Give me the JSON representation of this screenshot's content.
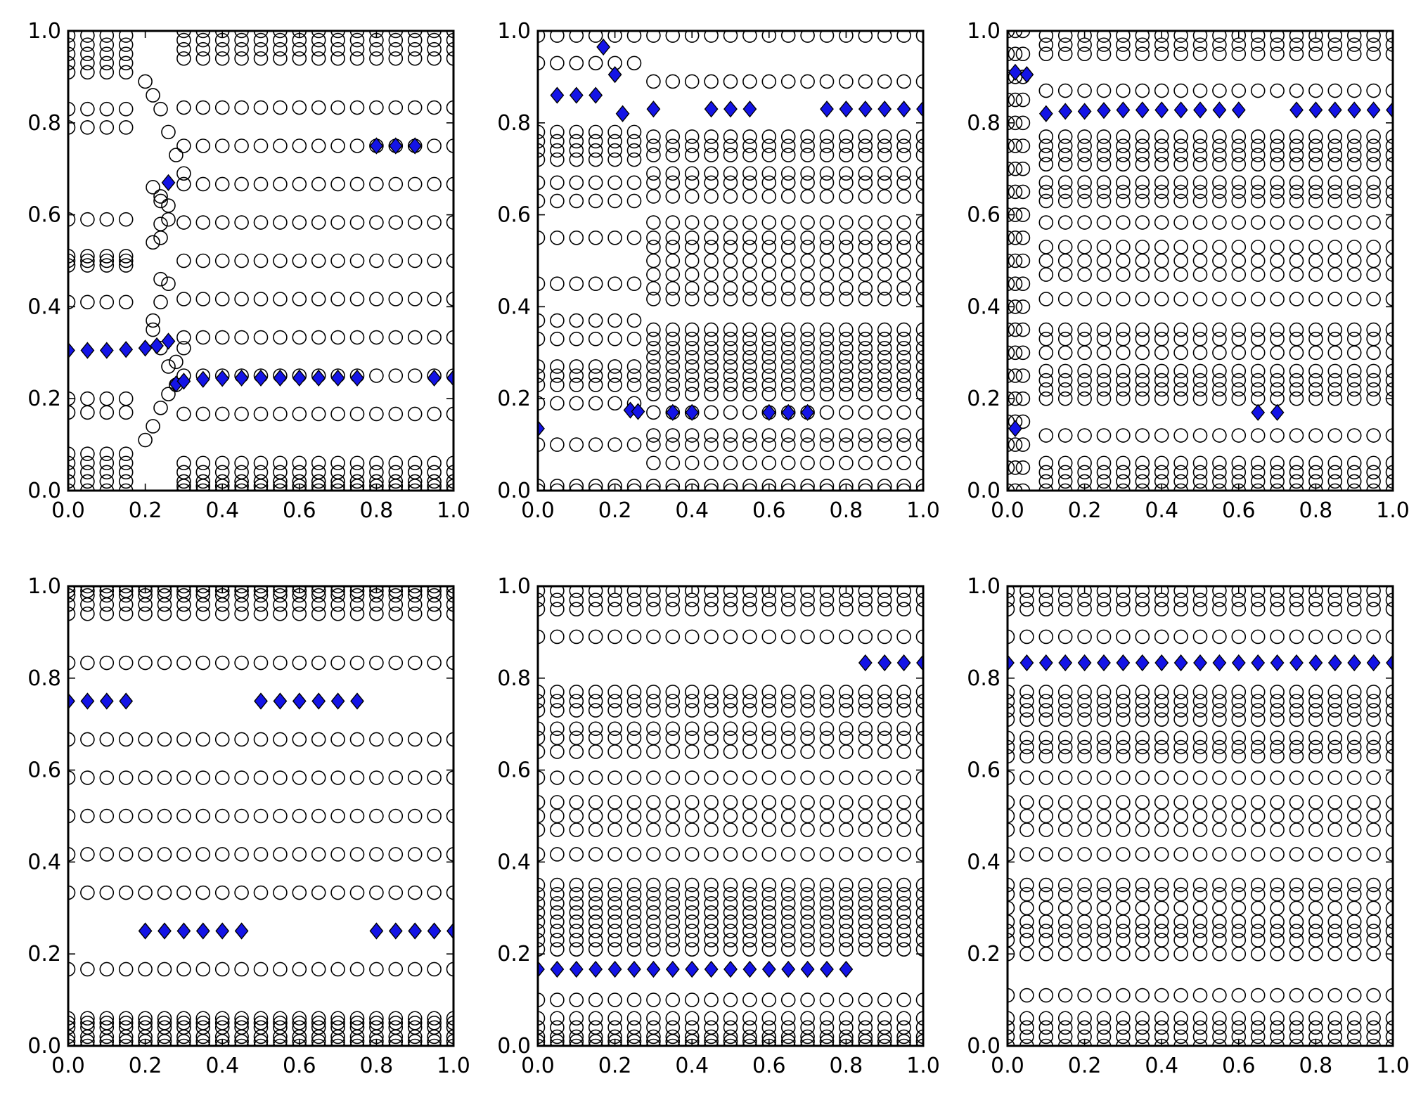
{
  "colors": {
    "background": "#ffffff",
    "open_marker": "#ffffff",
    "open_marker_edge": "#000000",
    "highlight": "#1414e6"
  },
  "chart_data": [
    {
      "type": "scatter",
      "xlim": [
        0,
        1
      ],
      "ylim": [
        0,
        1
      ],
      "xticks": [
        "0.0",
        "0.2",
        "0.4",
        "0.6",
        "0.8",
        "1.0"
      ],
      "yticks": [
        "0.0",
        "0.2",
        "0.4",
        "0.6",
        "0.8",
        "1.0"
      ],
      "grid": false,
      "series": [
        {
          "marker": "open-circle",
          "x_grid": [
            0.0,
            0.05,
            0.1,
            0.15,
            0.2,
            0.25,
            0.3,
            0.35,
            0.4,
            0.45,
            0.5,
            0.55,
            0.6,
            0.65,
            0.7,
            0.75,
            0.8,
            0.85,
            0.9,
            0.95,
            1.0
          ],
          "x_start": 0.3,
          "y_levels": [
            0.0,
            0.01,
            0.02,
            0.04,
            0.06,
            0.1667,
            0.25,
            0.3333,
            0.4167,
            0.5,
            0.5833,
            0.6667,
            0.75,
            0.8333,
            0.94,
            0.96,
            0.98,
            1.0
          ]
        },
        {
          "marker": "open-circle",
          "x_grid": [
            0.0,
            0.05,
            0.1,
            0.15
          ],
          "x_start": 0.0,
          "y_levels": [
            0.0,
            0.02,
            0.04,
            0.06,
            0.08,
            0.17,
            0.2,
            0.41,
            0.49,
            0.5,
            0.51,
            0.59,
            0.79,
            0.83,
            0.91,
            0.93,
            0.95,
            0.97,
            0.99
          ]
        },
        {
          "marker": "open-circle",
          "x": [
            0.2,
            0.22,
            0.24,
            0.26,
            0.28,
            0.3,
            0.2,
            0.22,
            0.24,
            0.26,
            0.28,
            0.3,
            0.22,
            0.24,
            0.26,
            0.24,
            0.22,
            0.24,
            0.26,
            0.24,
            0.22,
            0.24,
            0.26,
            0.24,
            0.22,
            0.24,
            0.26,
            0.28
          ],
          "y": [
            0.89,
            0.86,
            0.83,
            0.78,
            0.73,
            0.69,
            0.11,
            0.14,
            0.18,
            0.21,
            0.28,
            0.31,
            0.37,
            0.41,
            0.45,
            0.46,
            0.54,
            0.58,
            0.62,
            0.64,
            0.66,
            0.63,
            0.59,
            0.55,
            0.35,
            0.31,
            0.27,
            0.23
          ]
        },
        {
          "marker": "filled-diamond",
          "x": [
            0.0,
            0.05,
            0.1,
            0.15,
            0.2,
            0.23,
            0.26,
            0.28,
            0.3,
            0.35,
            0.4,
            0.45,
            0.5,
            0.55,
            0.6,
            0.65,
            0.7,
            0.75,
            0.95,
            1.0,
            0.8,
            0.85,
            0.9,
            0.26
          ],
          "y": [
            0.305,
            0.305,
            0.305,
            0.307,
            0.31,
            0.315,
            0.325,
            0.232,
            0.238,
            0.242,
            0.244,
            0.245,
            0.245,
            0.245,
            0.245,
            0.245,
            0.245,
            0.245,
            0.245,
            0.245,
            0.75,
            0.75,
            0.75,
            0.67
          ]
        }
      ]
    },
    {
      "type": "scatter",
      "xlim": [
        0,
        1
      ],
      "ylim": [
        0,
        1
      ],
      "xticks": [
        "0.0",
        "0.2",
        "0.4",
        "0.6",
        "0.8",
        "1.0"
      ],
      "yticks": [
        "0.0",
        "0.2",
        "0.4",
        "0.6",
        "0.8",
        "1.0"
      ],
      "grid": false,
      "series": [
        {
          "marker": "open-circle",
          "x_grid": [
            0.0,
            0.05,
            0.1,
            0.15,
            0.2,
            0.25,
            0.3,
            0.35,
            0.4,
            0.45,
            0.5,
            0.55,
            0.6,
            0.65,
            0.7,
            0.75,
            0.8,
            0.85,
            0.9,
            0.95,
            1.0
          ],
          "x_start": 0.3,
          "y_levels": [
            0.0,
            0.01,
            0.06,
            0.1,
            0.12,
            0.17,
            0.21,
            0.23,
            0.25,
            0.27,
            0.29,
            0.31,
            0.33,
            0.35,
            0.4167,
            0.44,
            0.47,
            0.5,
            0.53,
            0.55,
            0.5833,
            0.64,
            0.67,
            0.69,
            0.73,
            0.75,
            0.77,
            0.89,
            0.99
          ]
        },
        {
          "marker": "open-circle",
          "x_grid": [
            0.0,
            0.05,
            0.1,
            0.15,
            0.2,
            0.25
          ],
          "x_start": 0.0,
          "y_levels": [
            0.0,
            0.01,
            0.1,
            0.19,
            0.23,
            0.25,
            0.27,
            0.33,
            0.37,
            0.45,
            0.55,
            0.63,
            0.67,
            0.72,
            0.74,
            0.76,
            0.78,
            0.93,
            0.99
          ]
        },
        {
          "marker": "filled-diamond",
          "x": [
            0.05,
            0.1,
            0.15,
            0.17,
            0.2,
            0.22,
            0.3,
            0.45,
            0.5,
            0.55,
            0.75,
            0.8,
            0.85,
            0.9,
            0.95,
            1.0,
            0.0,
            0.24,
            0.26,
            0.35,
            0.4,
            0.6,
            0.65,
            0.7
          ],
          "y": [
            0.86,
            0.86,
            0.86,
            0.965,
            0.905,
            0.82,
            0.83,
            0.83,
            0.83,
            0.83,
            0.83,
            0.83,
            0.83,
            0.83,
            0.83,
            0.83,
            0.135,
            0.175,
            0.172,
            0.17,
            0.17,
            0.17,
            0.17,
            0.17
          ]
        }
      ]
    },
    {
      "type": "scatter",
      "xlim": [
        0,
        1
      ],
      "ylim": [
        0,
        1
      ],
      "xticks": [
        "0.0",
        "0.2",
        "0.4",
        "0.6",
        "0.8",
        "1.0"
      ],
      "yticks": [
        "0.0",
        "0.2",
        "0.4",
        "0.6",
        "0.8",
        "1.0"
      ],
      "grid": false,
      "series": [
        {
          "marker": "open-circle",
          "x_grid": [
            0.0,
            0.05,
            0.1,
            0.15,
            0.2,
            0.25,
            0.3,
            0.35,
            0.4,
            0.45,
            0.5,
            0.55,
            0.6,
            0.65,
            0.7,
            0.75,
            0.8,
            0.85,
            0.9,
            0.95,
            1.0
          ],
          "x_start": 0.1,
          "y_levels": [
            0.0,
            0.02,
            0.04,
            0.06,
            0.12,
            0.2,
            0.22,
            0.24,
            0.26,
            0.3,
            0.33,
            0.35,
            0.4167,
            0.47,
            0.5,
            0.53,
            0.5833,
            0.63,
            0.65,
            0.67,
            0.71,
            0.73,
            0.75,
            0.77,
            0.87,
            0.95,
            0.97,
            0.99
          ]
        },
        {
          "marker": "open-circle",
          "x_grid": [
            0.0,
            0.02,
            0.04
          ],
          "x_start": 0.0,
          "y_levels": [
            0.0,
            0.05,
            0.1,
            0.15,
            0.2,
            0.25,
            0.3,
            0.35,
            0.4,
            0.45,
            0.5,
            0.55,
            0.6,
            0.65,
            0.7,
            0.75,
            0.8,
            0.85,
            0.9,
            0.95,
            1.0
          ]
        },
        {
          "marker": "filled-diamond",
          "x": [
            0.02,
            0.05,
            0.1,
            0.15,
            0.2,
            0.25,
            0.3,
            0.35,
            0.4,
            0.45,
            0.5,
            0.55,
            0.6,
            0.75,
            0.8,
            0.85,
            0.9,
            0.95,
            1.0,
            0.02,
            0.65,
            0.7
          ],
          "y": [
            0.91,
            0.905,
            0.82,
            0.825,
            0.825,
            0.827,
            0.828,
            0.828,
            0.828,
            0.828,
            0.828,
            0.828,
            0.828,
            0.828,
            0.828,
            0.828,
            0.828,
            0.828,
            0.828,
            0.135,
            0.17,
            0.17
          ]
        }
      ]
    },
    {
      "type": "scatter",
      "xlim": [
        0,
        1
      ],
      "ylim": [
        0,
        1
      ],
      "xticks": [
        "0.0",
        "0.2",
        "0.4",
        "0.6",
        "0.8",
        "1.0"
      ],
      "yticks": [
        "0.0",
        "0.2",
        "0.4",
        "0.6",
        "0.8",
        "1.0"
      ],
      "grid": false,
      "series": [
        {
          "marker": "open-circle",
          "x_grid": [
            0.0,
            0.05,
            0.1,
            0.15,
            0.2,
            0.25,
            0.3,
            0.35,
            0.4,
            0.45,
            0.5,
            0.55,
            0.6,
            0.65,
            0.7,
            0.75,
            0.8,
            0.85,
            0.9,
            0.95,
            1.0
          ],
          "x_start": 0.0,
          "y_levels": [
            0.0,
            0.01,
            0.02,
            0.04,
            0.05,
            0.06,
            0.1667,
            0.3333,
            0.4167,
            0.5,
            0.5833,
            0.6667,
            0.8333,
            0.94,
            0.96,
            0.98,
            0.99,
            1.0
          ]
        },
        {
          "marker": "filled-diamond",
          "x": [
            0.0,
            0.05,
            0.1,
            0.15,
            0.5,
            0.55,
            0.6,
            0.65,
            0.7,
            0.75,
            0.2,
            0.25,
            0.3,
            0.35,
            0.4,
            0.45,
            0.8,
            0.85,
            0.9,
            0.95,
            1.0
          ],
          "y": [
            0.75,
            0.75,
            0.75,
            0.75,
            0.75,
            0.75,
            0.75,
            0.75,
            0.75,
            0.75,
            0.25,
            0.25,
            0.25,
            0.25,
            0.25,
            0.25,
            0.25,
            0.25,
            0.25,
            0.25,
            0.25
          ]
        }
      ]
    },
    {
      "type": "scatter",
      "xlim": [
        0,
        1
      ],
      "ylim": [
        0,
        1
      ],
      "xticks": [
        "0.0",
        "0.2",
        "0.4",
        "0.6",
        "0.8",
        "1.0"
      ],
      "yticks": [
        "0.0",
        "0.2",
        "0.4",
        "0.6",
        "0.8",
        "1.0"
      ],
      "grid": false,
      "series": [
        {
          "marker": "open-circle",
          "x_grid": [
            0.0,
            0.05,
            0.1,
            0.15,
            0.2,
            0.25,
            0.3,
            0.35,
            0.4,
            0.45,
            0.5,
            0.55,
            0.6,
            0.65,
            0.7,
            0.75,
            0.8,
            0.85,
            0.9,
            0.95,
            1.0
          ],
          "x_start": 0.0,
          "y_levels": [
            0.0,
            0.01,
            0.02,
            0.04,
            0.06,
            0.1,
            0.21,
            0.23,
            0.25,
            0.27,
            0.29,
            0.31,
            0.33,
            0.35,
            0.4167,
            0.47,
            0.5,
            0.53,
            0.5833,
            0.64,
            0.67,
            0.69,
            0.73,
            0.75,
            0.77,
            0.89,
            0.95,
            0.97,
            0.99
          ]
        },
        {
          "marker": "filled-diamond",
          "x": [
            0.0,
            0.05,
            0.1,
            0.15,
            0.2,
            0.25,
            0.3,
            0.35,
            0.4,
            0.45,
            0.5,
            0.55,
            0.6,
            0.65,
            0.7,
            0.75,
            0.8,
            0.85,
            0.9,
            0.95,
            1.0
          ],
          "y": [
            0.1667,
            0.1667,
            0.1667,
            0.1667,
            0.1667,
            0.1667,
            0.1667,
            0.1667,
            0.1667,
            0.1667,
            0.1667,
            0.1667,
            0.1667,
            0.1667,
            0.1667,
            0.1667,
            0.1667,
            0.8333,
            0.8333,
            0.8333,
            0.8333
          ]
        }
      ]
    },
    {
      "type": "scatter",
      "xlim": [
        0,
        1
      ],
      "ylim": [
        0,
        1
      ],
      "xticks": [
        "0.0",
        "0.2",
        "0.4",
        "0.6",
        "0.8",
        "1.0"
      ],
      "yticks": [
        "0.0",
        "0.2",
        "0.4",
        "0.6",
        "0.8",
        "1.0"
      ],
      "grid": false,
      "series": [
        {
          "marker": "open-circle",
          "x_grid": [
            0.0,
            0.05,
            0.1,
            0.15,
            0.2,
            0.25,
            0.3,
            0.35,
            0.4,
            0.45,
            0.5,
            0.55,
            0.6,
            0.65,
            0.7,
            0.75,
            0.8,
            0.85,
            0.9,
            0.95,
            1.0
          ],
          "x_start": 0.0,
          "y_levels": [
            0.0,
            0.02,
            0.04,
            0.06,
            0.11,
            0.2,
            0.23,
            0.25,
            0.27,
            0.3,
            0.33,
            0.35,
            0.4167,
            0.47,
            0.5,
            0.53,
            0.5833,
            0.63,
            0.65,
            0.67,
            0.71,
            0.73,
            0.75,
            0.77,
            0.89,
            0.95,
            0.97,
            0.99
          ]
        },
        {
          "marker": "filled-diamond",
          "x": [
            0.0,
            0.05,
            0.1,
            0.15,
            0.2,
            0.25,
            0.3,
            0.35,
            0.4,
            0.45,
            0.5,
            0.55,
            0.6,
            0.65,
            0.7,
            0.75,
            0.8,
            0.85,
            0.9,
            0.95,
            1.0
          ],
          "y": [
            0.8333,
            0.8333,
            0.8333,
            0.8333,
            0.8333,
            0.8333,
            0.8333,
            0.8333,
            0.8333,
            0.8333,
            0.8333,
            0.8333,
            0.8333,
            0.8333,
            0.8333,
            0.8333,
            0.8333,
            0.8333,
            0.8333,
            0.8333,
            0.8333
          ]
        }
      ]
    }
  ]
}
